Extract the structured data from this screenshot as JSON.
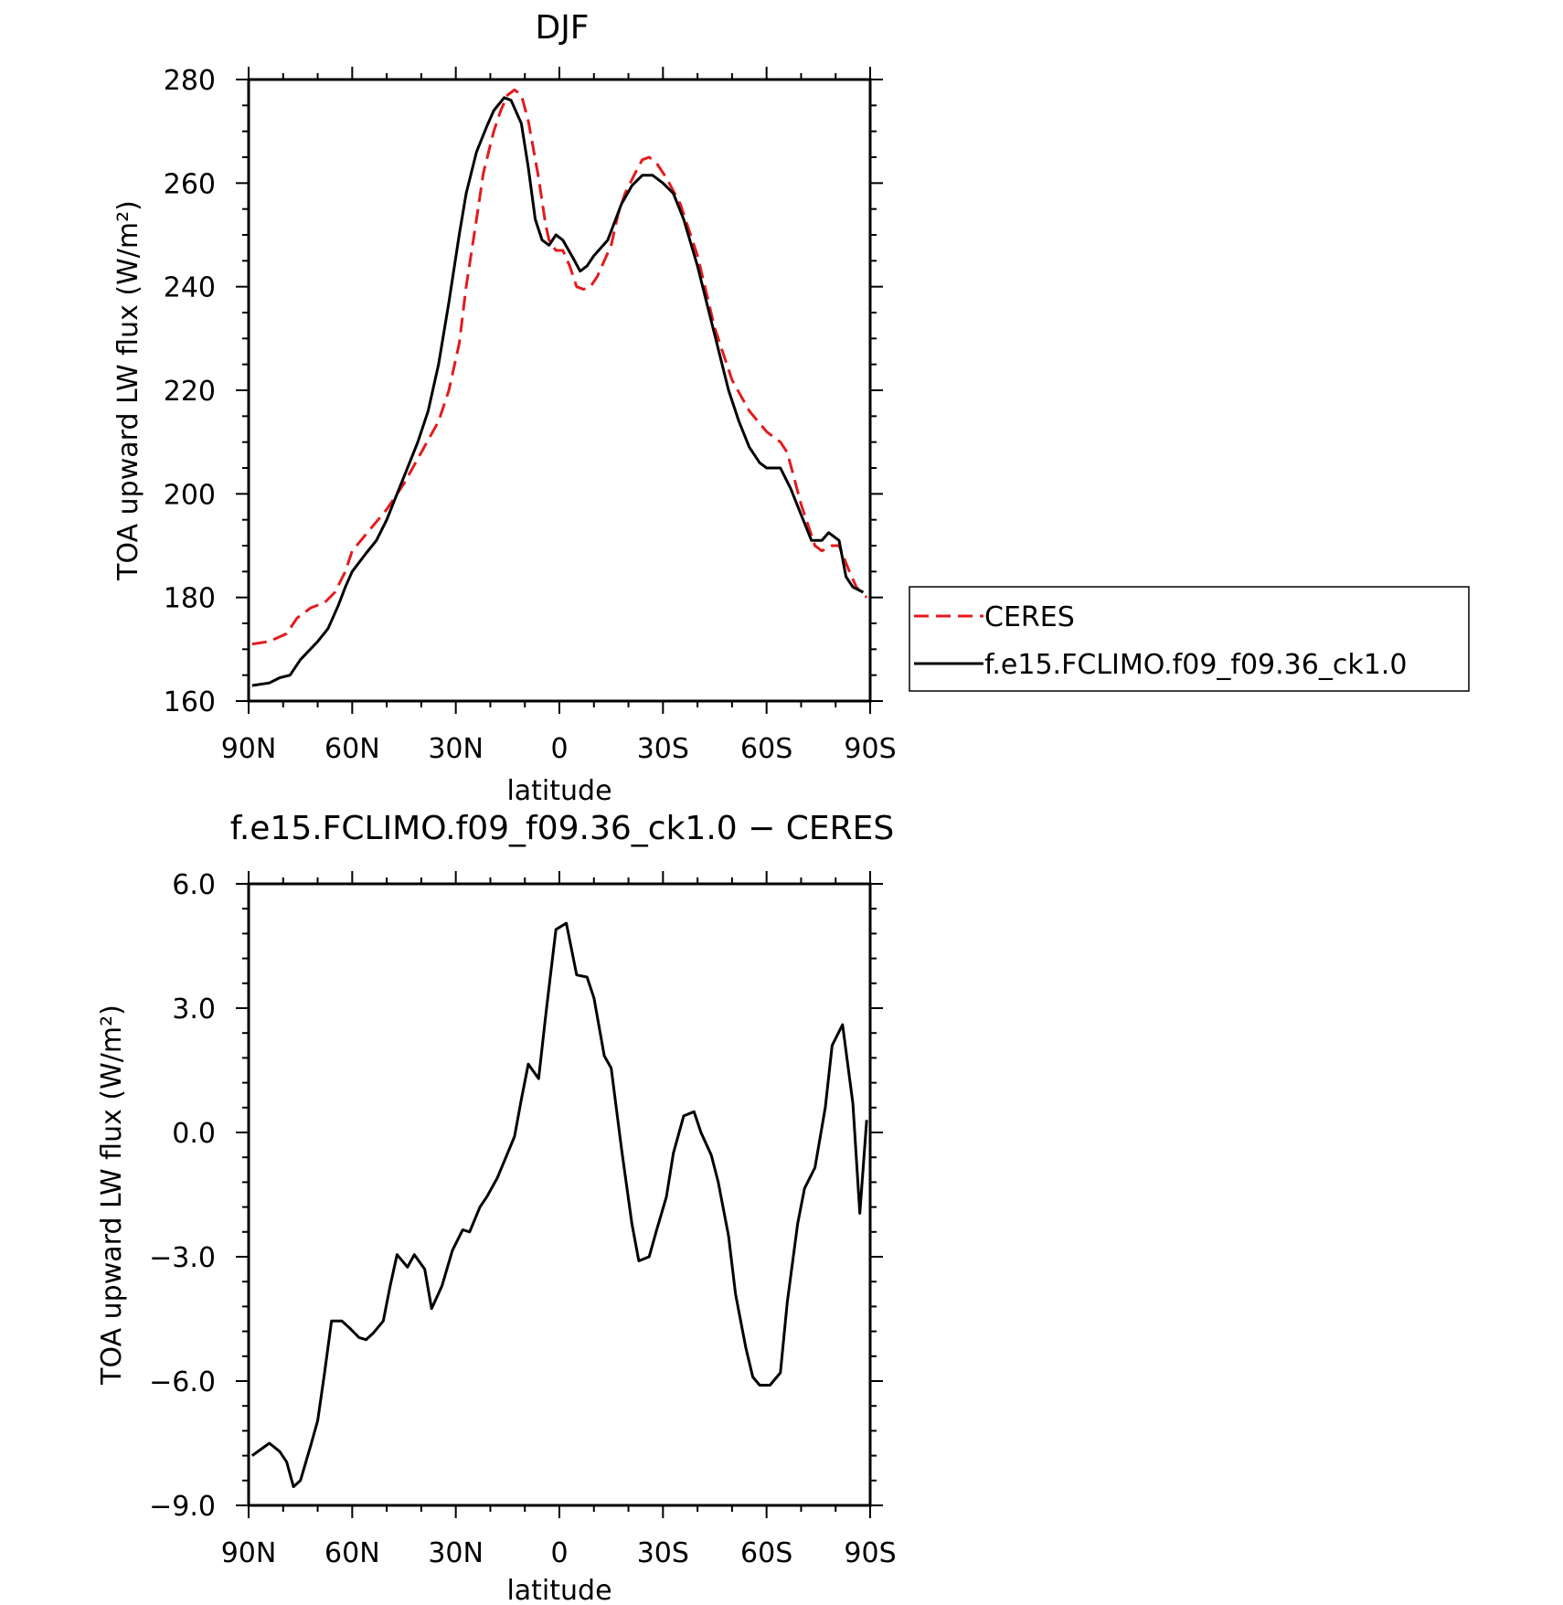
{
  "chart_data": [
    {
      "type": "line",
      "title": "DJF",
      "xlabel": "latitude",
      "ylabel": "TOA upward LW flux (W/m²)",
      "x_tick_labels": [
        "90N",
        "60N",
        "30N",
        "0",
        "30S",
        "60S",
        "90S"
      ],
      "x_tick_values": [
        90,
        60,
        30,
        0,
        -30,
        -60,
        -90
      ],
      "xlim": [
        90,
        -90
      ],
      "y_tick_labels": [
        "160",
        "180",
        "200",
        "220",
        "240",
        "260",
        "280"
      ],
      "y_tick_values": [
        160,
        180,
        200,
        220,
        240,
        260,
        280
      ],
      "ylim": [
        160,
        280
      ],
      "legend": {
        "placement": "right"
      },
      "series": [
        {
          "name": "CERES",
          "color": "#e41a1c",
          "style": "dashed",
          "points": [
            [
              89,
              171
            ],
            [
              84,
              171.5
            ],
            [
              79,
              173
            ],
            [
              76,
              176
            ],
            [
              72,
              178
            ],
            [
              68,
              179
            ],
            [
              65,
              181
            ],
            [
              62,
              185
            ],
            [
              60,
              189
            ],
            [
              55,
              193
            ],
            [
              50,
              197
            ],
            [
              45,
              202
            ],
            [
              40,
              208
            ],
            [
              35,
              214
            ],
            [
              32,
              220
            ],
            [
              29,
              229
            ],
            [
              27,
              240
            ],
            [
              24,
              253
            ],
            [
              22,
              262
            ],
            [
              19,
              270
            ],
            [
              17,
              274
            ],
            [
              15,
              277
            ],
            [
              13,
              278
            ],
            [
              11,
              277
            ],
            [
              9,
              272
            ],
            [
              6,
              261
            ],
            [
              4,
              252
            ],
            [
              3,
              249
            ],
            [
              1,
              247
            ],
            [
              -1,
              247
            ],
            [
              -3,
              244
            ],
            [
              -5,
              240
            ],
            [
              -7,
              239.5
            ],
            [
              -9,
              240
            ],
            [
              -11,
              242
            ],
            [
              -13,
              245
            ],
            [
              -15,
              248
            ],
            [
              -17,
              254
            ],
            [
              -19,
              258
            ],
            [
              -22,
              262
            ],
            [
              -24,
              264.5
            ],
            [
              -26,
              265
            ],
            [
              -28,
              264
            ],
            [
              -31,
              261
            ],
            [
              -35,
              256
            ],
            [
              -40,
              246
            ],
            [
              -45,
              232
            ],
            [
              -50,
              222
            ],
            [
              -55,
              216
            ],
            [
              -60,
              212
            ],
            [
              -64,
              210
            ],
            [
              -66,
              208
            ],
            [
              -68,
              203
            ],
            [
              -70,
              198
            ],
            [
              -72,
              194
            ],
            [
              -74,
              190
            ],
            [
              -76,
              189
            ],
            [
              -79,
              190
            ],
            [
              -81,
              190
            ],
            [
              -84,
              185
            ],
            [
              -86,
              182
            ],
            [
              -89,
              180
            ]
          ]
        },
        {
          "name": "f.e15.FCLIMO.f09_f09.36_ck1.0",
          "color": "#000000",
          "style": "solid",
          "points": [
            [
              89,
              163
            ],
            [
              84,
              163.5
            ],
            [
              81,
              164.5
            ],
            [
              78,
              165
            ],
            [
              75,
              168
            ],
            [
              70,
              171.5
            ],
            [
              67,
              174
            ],
            [
              64,
              178.5
            ],
            [
              62,
              182
            ],
            [
              60,
              185
            ],
            [
              56,
              188.5
            ],
            [
              53,
              191
            ],
            [
              50,
              195
            ],
            [
              47,
              200
            ],
            [
              44,
              205
            ],
            [
              41,
              210
            ],
            [
              38,
              216
            ],
            [
              35,
              225
            ],
            [
              32,
              237
            ],
            [
              29,
              250
            ],
            [
              27,
              258
            ],
            [
              24,
              266
            ],
            [
              21,
              271
            ],
            [
              19,
              274
            ],
            [
              16,
              276.5
            ],
            [
              14,
              276
            ],
            [
              11,
              271.5
            ],
            [
              9,
              263
            ],
            [
              7,
              253
            ],
            [
              5,
              249
            ],
            [
              3,
              248
            ],
            [
              1,
              250
            ],
            [
              -1,
              249
            ],
            [
              -4,
              245.5
            ],
            [
              -6,
              243
            ],
            [
              -8,
              244
            ],
            [
              -10,
              246
            ],
            [
              -14,
              249
            ],
            [
              -18,
              256
            ],
            [
              -21,
              259.5
            ],
            [
              -24,
              261.5
            ],
            [
              -27,
              261.5
            ],
            [
              -30,
              260
            ],
            [
              -33,
              258
            ],
            [
              -36,
              253
            ],
            [
              -40,
              244
            ],
            [
              -43,
              236
            ],
            [
              -46,
              228
            ],
            [
              -49,
              220
            ],
            [
              -52,
              214
            ],
            [
              -55,
              209
            ],
            [
              -58,
              206
            ],
            [
              -60,
              205
            ],
            [
              -64,
              205
            ],
            [
              -67,
              201
            ],
            [
              -70,
              196
            ],
            [
              -73,
              191
            ],
            [
              -76,
              191
            ],
            [
              -78,
              192.5
            ],
            [
              -81,
              191
            ],
            [
              -83,
              184
            ],
            [
              -85,
              182
            ],
            [
              -88,
              181
            ]
          ]
        }
      ]
    },
    {
      "type": "line",
      "title": "f.e15.FCLIMO.f09_f09.36_ck1.0 − CERES",
      "xlabel": "latitude",
      "ylabel": "TOA upward LW flux (W/m²)",
      "x_tick_labels": [
        "90N",
        "60N",
        "30N",
        "0",
        "30S",
        "60S",
        "90S"
      ],
      "x_tick_values": [
        90,
        60,
        30,
        0,
        -30,
        -60,
        -90
      ],
      "xlim": [
        90,
        -90
      ],
      "y_tick_labels": [
        "−9.0",
        "−6.0",
        "−3.0",
        "0.0",
        "3.0",
        "6.0"
      ],
      "y_tick_values": [
        -9,
        -6,
        -3,
        0,
        3,
        6
      ],
      "ylim": [
        -9,
        6
      ],
      "series": [
        {
          "color": "#000000",
          "style": "solid",
          "points": [
            [
              89,
              -7.8
            ],
            [
              84,
              -7.5
            ],
            [
              81,
              -7.7
            ],
            [
              79,
              -7.95
            ],
            [
              77,
              -8.55
            ],
            [
              75,
              -8.4
            ],
            [
              72,
              -7.55
            ],
            [
              70,
              -6.95
            ],
            [
              68,
              -5.8
            ],
            [
              66,
              -4.55
            ],
            [
              63,
              -4.55
            ],
            [
              61,
              -4.7
            ],
            [
              58,
              -4.95
            ],
            [
              56,
              -5.0
            ],
            [
              54,
              -4.85
            ],
            [
              51,
              -4.55
            ],
            [
              49,
              -3.7
            ],
            [
              47,
              -2.95
            ],
            [
              44,
              -3.25
            ],
            [
              42,
              -2.95
            ],
            [
              39,
              -3.3
            ],
            [
              37,
              -4.25
            ],
            [
              34,
              -3.7
            ],
            [
              31,
              -2.85
            ],
            [
              28,
              -2.35
            ],
            [
              26,
              -2.4
            ],
            [
              23,
              -1.8
            ],
            [
              21,
              -1.55
            ],
            [
              18,
              -1.1
            ],
            [
              16,
              -0.7
            ],
            [
              13,
              -0.1
            ],
            [
              11,
              0.8
            ],
            [
              9,
              1.65
            ],
            [
              6,
              1.3
            ],
            [
              4,
              2.8
            ],
            [
              1,
              4.9
            ],
            [
              -2,
              5.05
            ],
            [
              -5,
              3.8
            ],
            [
              -8,
              3.75
            ],
            [
              -10,
              3.25
            ],
            [
              -13,
              1.85
            ],
            [
              -15,
              1.55
            ],
            [
              -18,
              -0.4
            ],
            [
              -21,
              -2.2
            ],
            [
              -23,
              -3.1
            ],
            [
              -26,
              -3.0
            ],
            [
              -28,
              -2.4
            ],
            [
              -31,
              -1.55
            ],
            [
              -33,
              -0.5
            ],
            [
              -36,
              0.4
            ],
            [
              -39,
              0.5
            ],
            [
              -41,
              0.0
            ],
            [
              -44,
              -0.55
            ],
            [
              -46,
              -1.2
            ],
            [
              -49,
              -2.5
            ],
            [
              -51,
              -3.9
            ],
            [
              -54,
              -5.2
            ],
            [
              -56,
              -5.9
            ],
            [
              -58,
              -6.1
            ],
            [
              -61,
              -6.1
            ],
            [
              -64,
              -5.8
            ],
            [
              -66,
              -4.1
            ],
            [
              -69,
              -2.2
            ],
            [
              -71,
              -1.35
            ],
            [
              -74,
              -0.85
            ],
            [
              -77,
              0.6
            ],
            [
              -79,
              2.1
            ],
            [
              -82,
              2.6
            ],
            [
              -85,
              0.7
            ],
            [
              -87,
              -1.95
            ],
            [
              -89,
              0.3
            ]
          ]
        }
      ]
    }
  ]
}
